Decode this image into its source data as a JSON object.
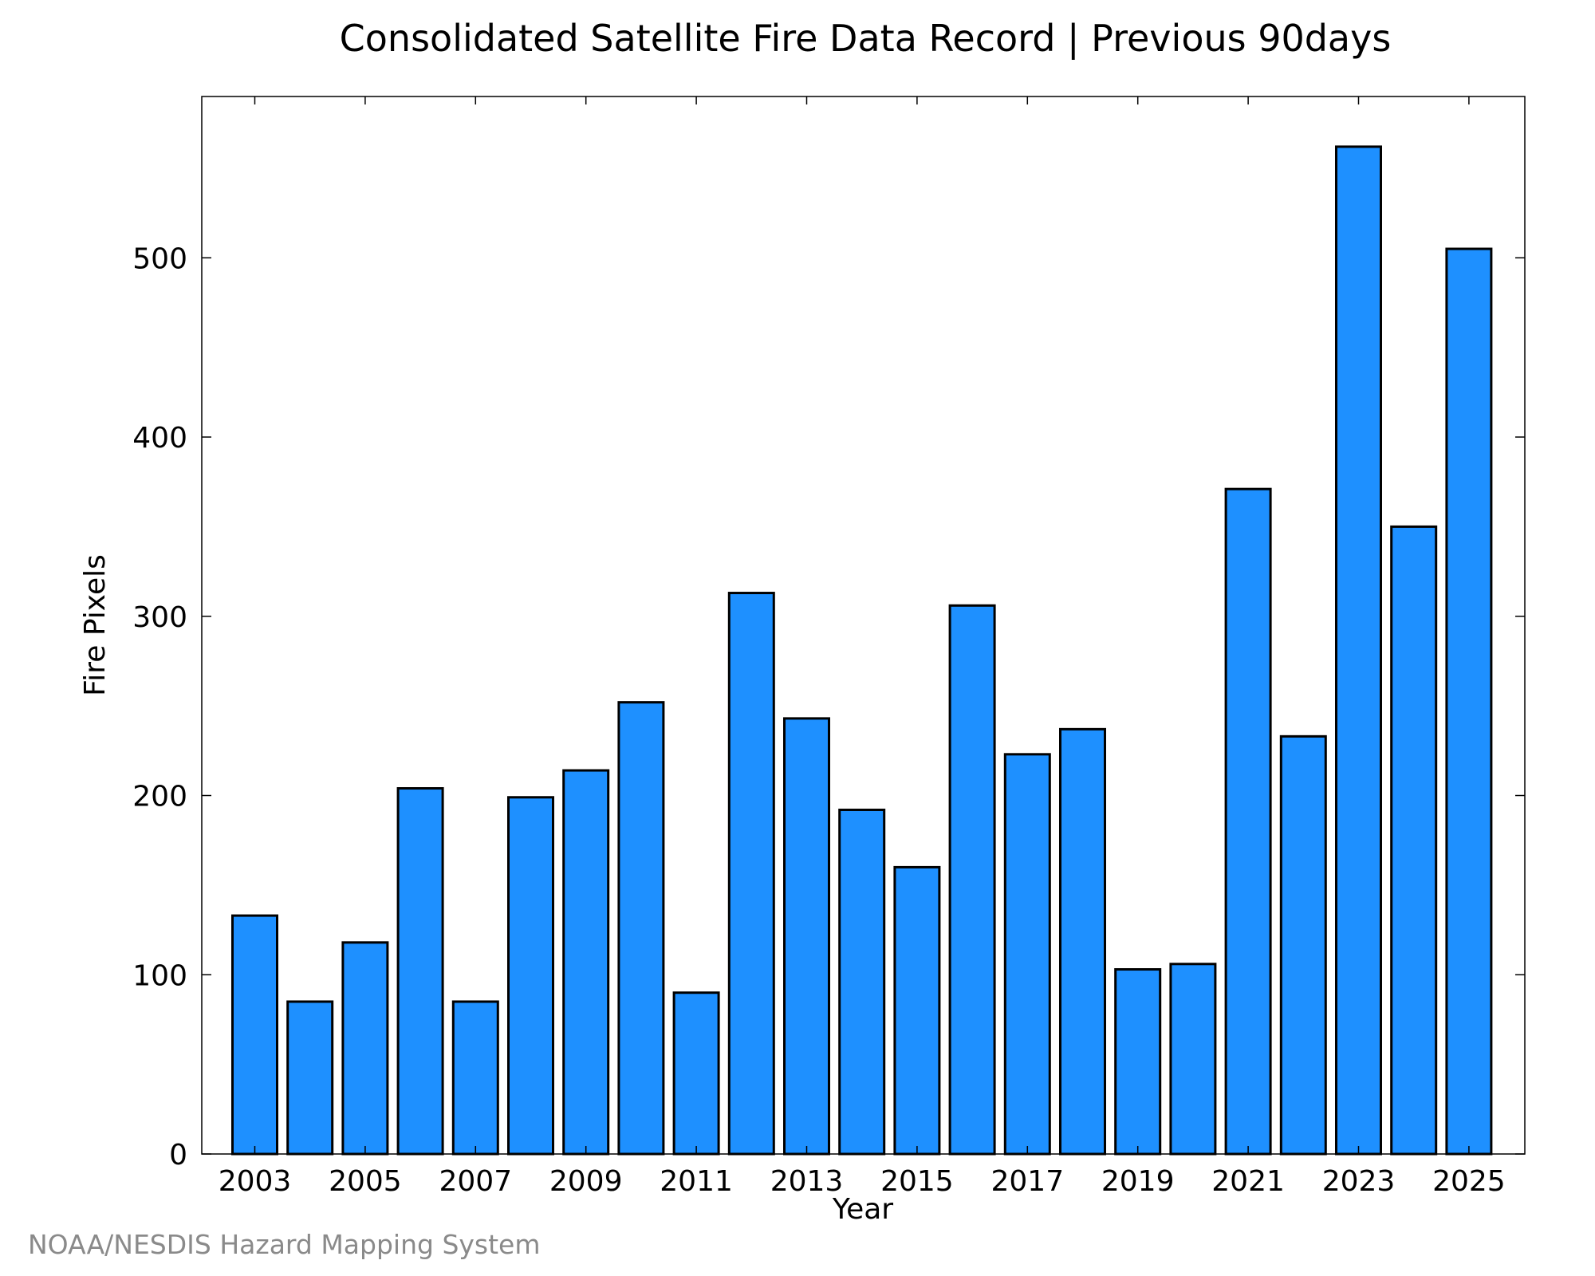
{
  "chart_data": {
    "type": "bar",
    "title": "Consolidated Satellite Fire Data Record | Previous 90days",
    "xlabel": "Year",
    "ylabel": "Fire Pixels",
    "categories": [
      "2003",
      "2004",
      "2005",
      "2006",
      "2007",
      "2008",
      "2009",
      "2010",
      "2011",
      "2012",
      "2013",
      "2014",
      "2015",
      "2016",
      "2017",
      "2018",
      "2019",
      "2020",
      "2021",
      "2022",
      "2023",
      "2024",
      "2025"
    ],
    "values": [
      133,
      85,
      118,
      204,
      85,
      199,
      214,
      252,
      90,
      313,
      243,
      192,
      160,
      306,
      223,
      237,
      103,
      106,
      371,
      233,
      562,
      350,
      505
    ],
    "x_tick_labels": [
      "2003",
      "2005",
      "2007",
      "2009",
      "2011",
      "2013",
      "2015",
      "2017",
      "2019",
      "2021",
      "2023",
      "2025"
    ],
    "y_ticks": [
      0,
      100,
      200,
      300,
      400,
      500
    ],
    "ylim": [
      0,
      590
    ],
    "grid": false,
    "bar_color": "#1e90ff",
    "credit": "NOAA/NESDIS Hazard Mapping System"
  }
}
